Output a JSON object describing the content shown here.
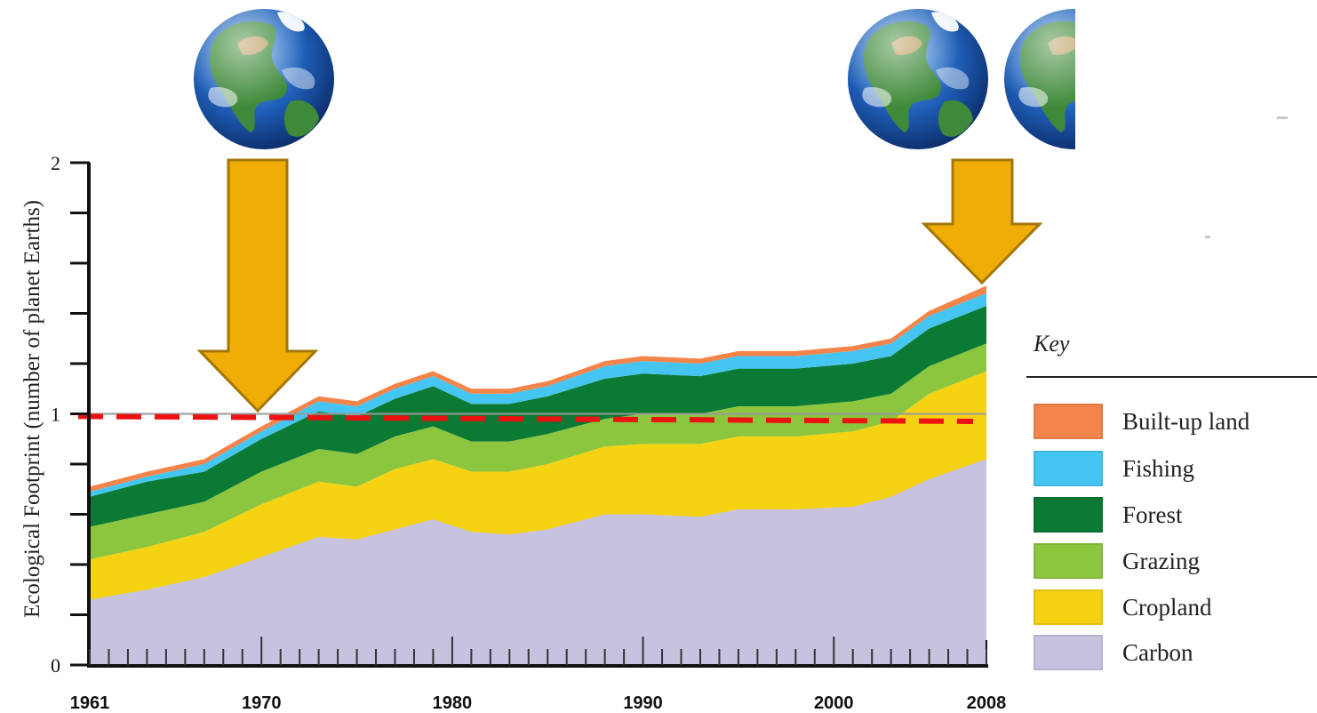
{
  "chart_data": {
    "type": "area",
    "stacked": true,
    "title": "",
    "xlabel": "",
    "ylabel": "Ecological Footprint (number of planet Earths)",
    "xlim": [
      1961,
      2008
    ],
    "ylim": [
      0,
      2
    ],
    "x_tick_labels": [
      "1961",
      "1970",
      "1980",
      "1990",
      "2000",
      "2008"
    ],
    "y_tick_labels": [
      "0",
      "1",
      "2"
    ],
    "x": [
      1961,
      1964,
      1967,
      1970,
      1973,
      1975,
      1977,
      1979,
      1981,
      1983,
      1985,
      1988,
      1990,
      1993,
      1995,
      1998,
      2001,
      2003,
      2005,
      2008
    ],
    "series": [
      {
        "name": "Carbon",
        "color": "#c7c2df",
        "values": [
          0.26,
          0.3,
          0.35,
          0.43,
          0.51,
          0.5,
          0.54,
          0.58,
          0.53,
          0.52,
          0.54,
          0.6,
          0.6,
          0.59,
          0.62,
          0.62,
          0.63,
          0.67,
          0.74,
          0.82
        ]
      },
      {
        "name": "Cropland",
        "color": "#f5d212",
        "values": [
          0.16,
          0.17,
          0.18,
          0.21,
          0.22,
          0.21,
          0.24,
          0.24,
          0.24,
          0.25,
          0.26,
          0.27,
          0.28,
          0.29,
          0.29,
          0.29,
          0.3,
          0.3,
          0.34,
          0.35
        ]
      },
      {
        "name": "Grazing",
        "color": "#8cc63f",
        "values": [
          0.13,
          0.13,
          0.12,
          0.13,
          0.13,
          0.13,
          0.13,
          0.13,
          0.12,
          0.12,
          0.12,
          0.11,
          0.12,
          0.12,
          0.12,
          0.12,
          0.12,
          0.11,
          0.11,
          0.11
        ]
      },
      {
        "name": "Forest",
        "color": "#0b7a34",
        "values": [
          0.12,
          0.13,
          0.12,
          0.13,
          0.15,
          0.15,
          0.15,
          0.16,
          0.15,
          0.15,
          0.15,
          0.16,
          0.16,
          0.15,
          0.15,
          0.15,
          0.15,
          0.15,
          0.15,
          0.15
        ]
      },
      {
        "name": "Fishing",
        "color": "#45c6f2",
        "values": [
          0.02,
          0.02,
          0.03,
          0.03,
          0.04,
          0.04,
          0.04,
          0.04,
          0.04,
          0.04,
          0.04,
          0.05,
          0.05,
          0.05,
          0.05,
          0.05,
          0.05,
          0.05,
          0.05,
          0.05
        ]
      },
      {
        "name": "Built-up land",
        "color": "#f3844a",
        "values": [
          0.02,
          0.02,
          0.02,
          0.02,
          0.02,
          0.02,
          0.02,
          0.02,
          0.02,
          0.02,
          0.02,
          0.02,
          0.02,
          0.02,
          0.02,
          0.02,
          0.02,
          0.02,
          0.02,
          0.03
        ]
      }
    ],
    "reference_lines": [
      {
        "y": 1.0,
        "style": "solid",
        "color": "#999999"
      },
      {
        "y_start": 0.99,
        "y_end": 0.97,
        "style": "dashed",
        "color": "#ee1111"
      }
    ],
    "grid": false,
    "legend": {
      "title": "Key",
      "placement": "right",
      "order": [
        "Built-up land",
        "Fishing",
        "Forest",
        "Grazing",
        "Cropland",
        "Carbon"
      ]
    },
    "annotations": [
      {
        "type": "arrow",
        "x": 1970,
        "y": 1.0,
        "color": "#f0ad06",
        "direction": "down"
      },
      {
        "type": "arrow",
        "x": 2008,
        "y": 1.5,
        "color": "#f0ad06",
        "direction": "down"
      },
      {
        "type": "image",
        "name": "earth-globe",
        "count": 1,
        "above": 1970
      },
      {
        "type": "image",
        "name": "earth-globe",
        "count": 1.5,
        "above": 2008
      }
    ]
  }
}
